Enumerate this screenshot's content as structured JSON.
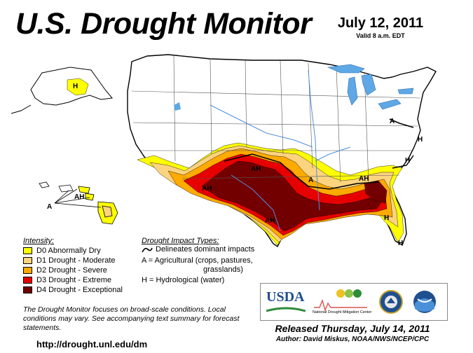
{
  "header": {
    "title": "U.S. Drought Monitor",
    "date": "July 12, 2011",
    "valid": "Valid 8 a.m. EDT"
  },
  "map_labels": {
    "alaska_h": "H",
    "hawaii_ah": "AH",
    "hawaii_a": "A",
    "east_a": "A",
    "mid_a": "A",
    "south_ah": "AH",
    "se_h1": "H",
    "se_h2": "H",
    "se_h3": "H",
    "plains_ah": "AH",
    "tx_ah": "AH",
    "east_h": "H",
    "sw_ah": "AH"
  },
  "legend": {
    "heading": "Intensity:",
    "items": [
      {
        "label": "D0 Abnormally Dry",
        "color": "#ffff00"
      },
      {
        "label": "D1 Drought - Moderate",
        "color": "#fcd37f"
      },
      {
        "label": "D2 Drought - Severe",
        "color": "#ffaa00"
      },
      {
        "label": "D3 Drought - Extreme",
        "color": "#e60000"
      },
      {
        "label": "D4 Drought - Exceptional",
        "color": "#730000"
      }
    ]
  },
  "impacts": {
    "heading": "Drought Impact Types:",
    "line1": "Delineates dominant impacts",
    "line2": "A = Agricultural (crops, pastures,",
    "line3": "grasslands)",
    "line4": "H = Hydrological (water)"
  },
  "logos": {
    "usda": "USDA",
    "ndmc_line1": "National",
    "ndmc_line2": "Drought Mitigation Center"
  },
  "note": "The Drought Monitor focuses on broad-scale conditions. Local conditions may vary. See accompanying text summary for forecast statements.",
  "url": "http://drought.unl.edu/dm",
  "released": "Released Thursday, July 14, 2011",
  "author": "Author: David Miskus, NOAA/NWS/NCEP/CPC",
  "colors": {
    "lake": "#5fa8e6",
    "state_border": "#000000",
    "county_line": "#c9c9c9",
    "river": "#4f8fd9"
  }
}
